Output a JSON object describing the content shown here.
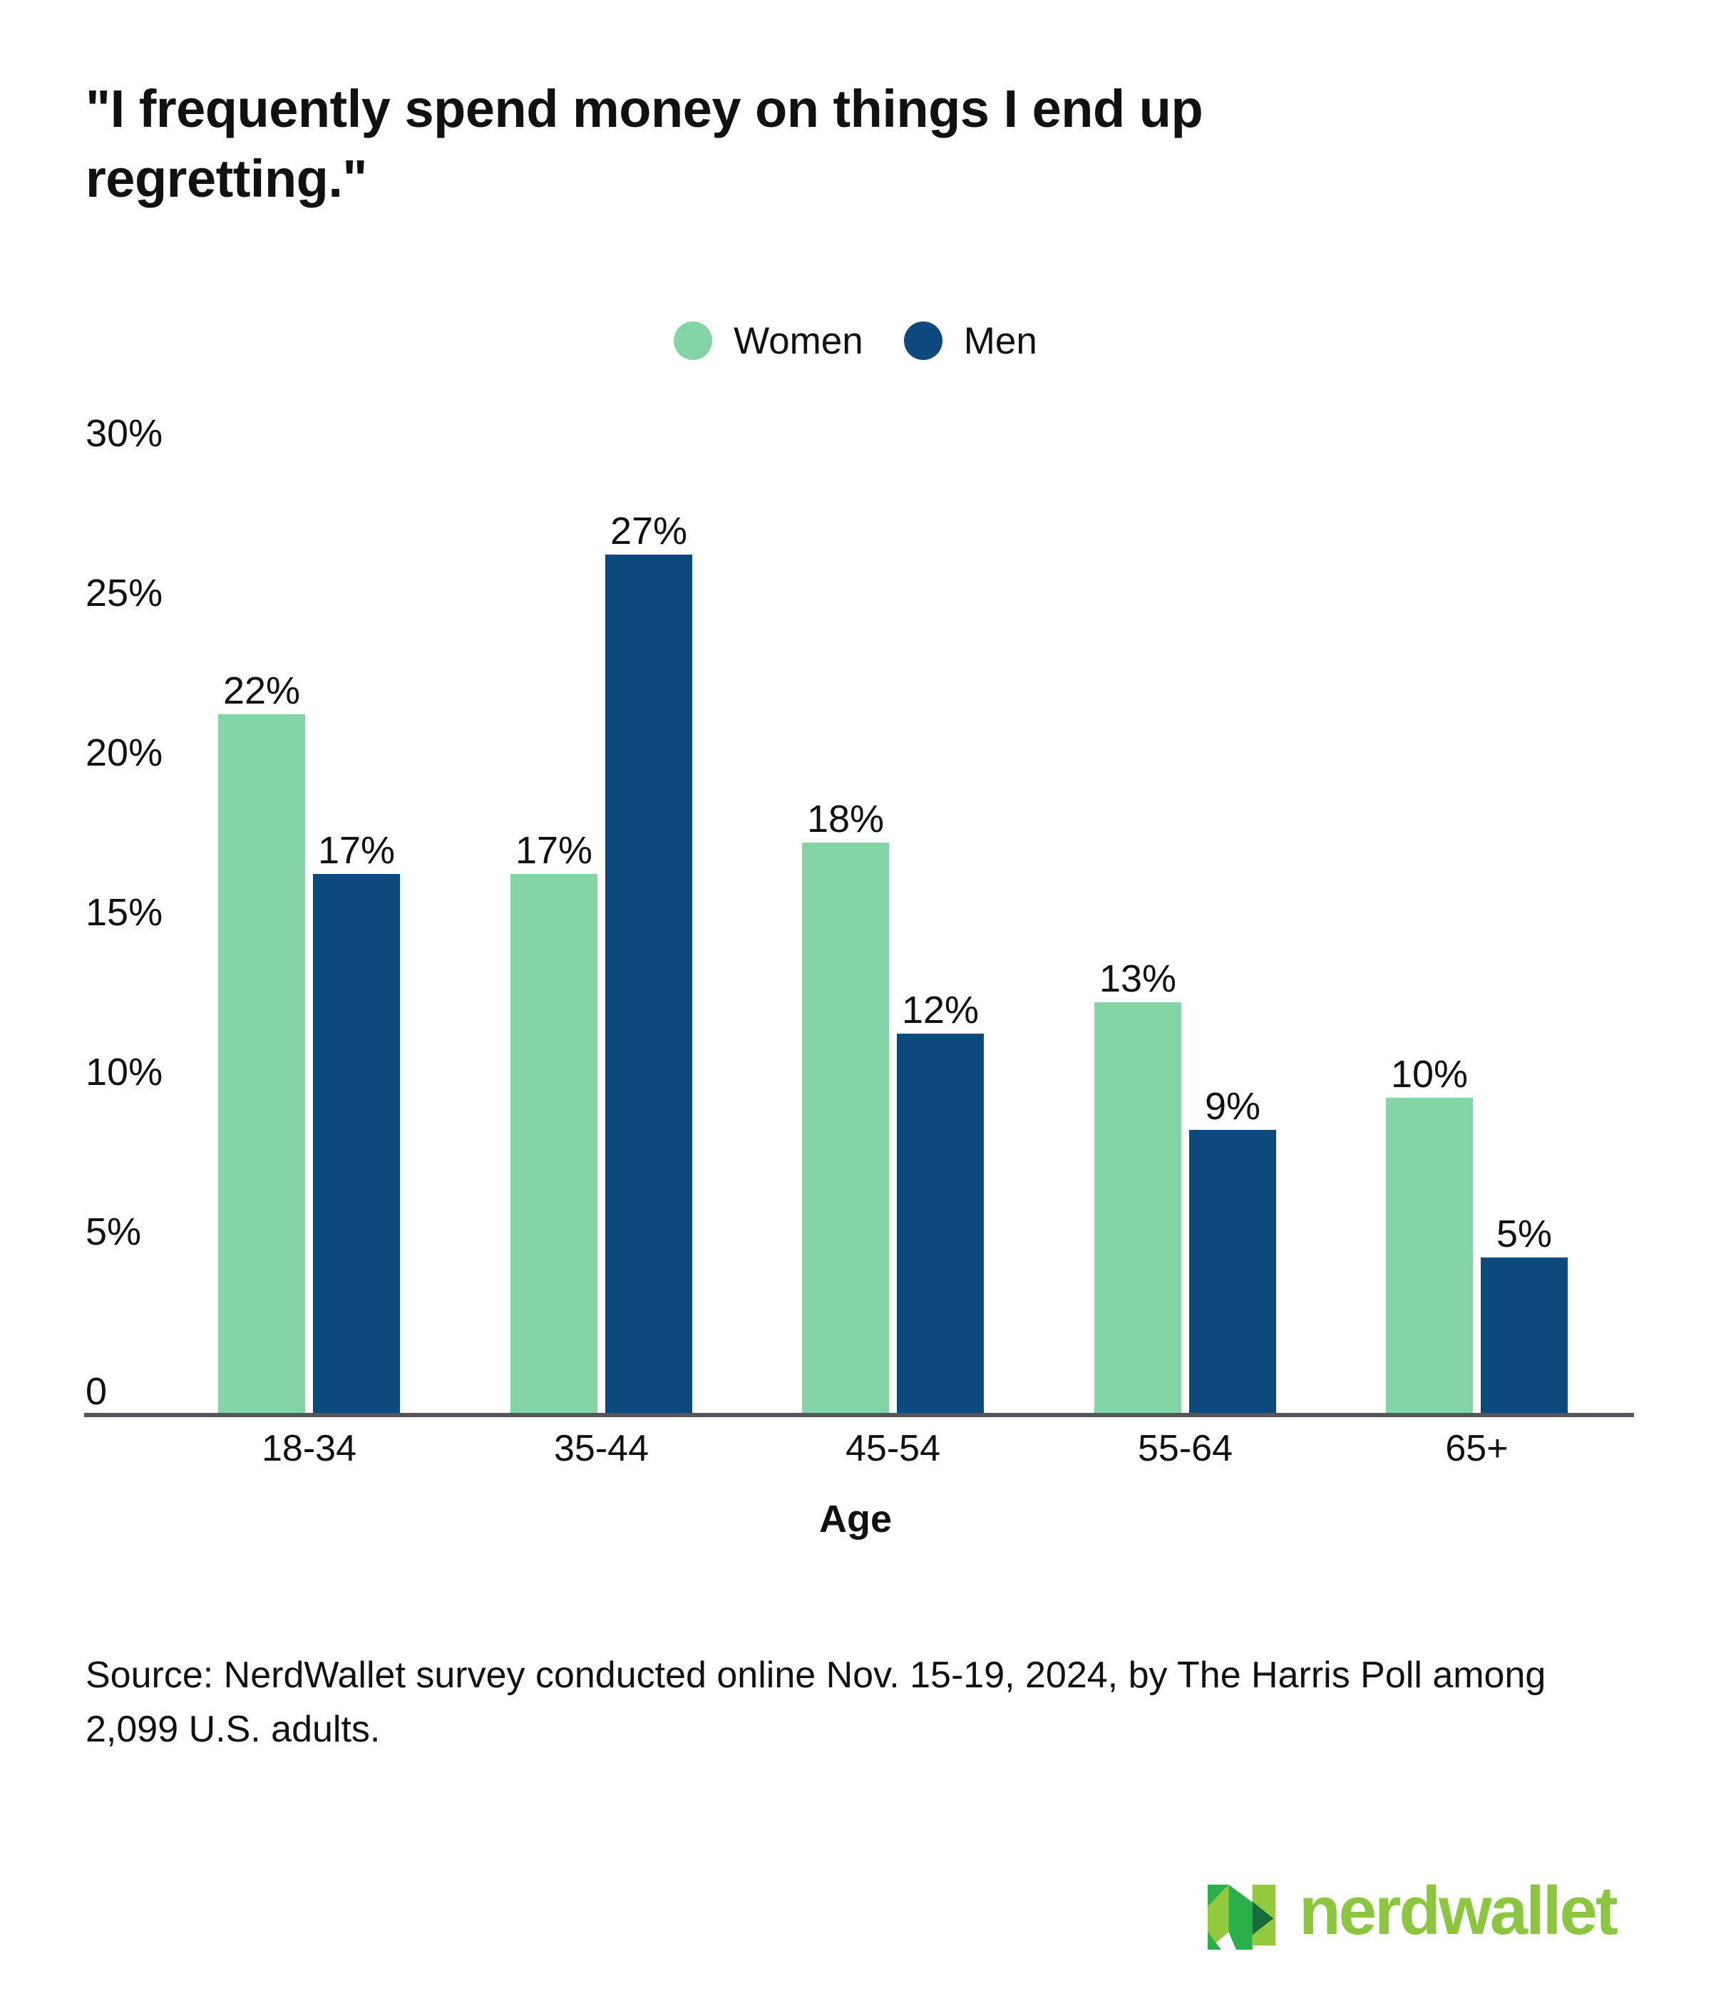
{
  "title": "\"I frequently spend money on things I end up regretting.\"",
  "legend": {
    "items": [
      {
        "label": "Women",
        "color": "#84D4A7"
      },
      {
        "label": "Men",
        "color": "#0C4A7D"
      }
    ]
  },
  "chart_data": {
    "type": "bar",
    "categories": [
      "18-34",
      "35-44",
      "45-54",
      "55-64",
      "65+"
    ],
    "series": [
      {
        "name": "Women",
        "color": "#84D4A7",
        "values": [
          22,
          17,
          18,
          13,
          10
        ]
      },
      {
        "name": "Men",
        "color": "#0C4A7D",
        "values": [
          17,
          27,
          12,
          9,
          5
        ]
      }
    ],
    "value_suffix": "%",
    "title": "\"I frequently spend money on things I end up regretting.\"",
    "xlabel": "Age",
    "ylabel": "",
    "ylim": [
      0,
      30
    ],
    "yticks": [
      {
        "label": "30%",
        "value": 30
      },
      {
        "label": "25%",
        "value": 25
      },
      {
        "label": "20%",
        "value": 20
      },
      {
        "label": "15%",
        "value": 15
      },
      {
        "label": "10%",
        "value": 10
      },
      {
        "label": "5%",
        "value": 5
      },
      {
        "label": "0",
        "value": 0
      }
    ],
    "grid": false,
    "legend_position": "top-center",
    "data_labels": true,
    "axis_line_color": "#54565A"
  },
  "xaxis": {
    "label": "Age"
  },
  "source": {
    "text": "Source: NerdWallet survey conducted online Nov. 15-19, 2024, by The Harris Poll among 2,099 U.S. adults."
  },
  "logo": {
    "wordmark": "nerdwallet",
    "wordmark_color": "#8CC63F",
    "mark_colors": {
      "kelly": "#2AB04A",
      "light": "#93C93F",
      "dark": "#176B3D"
    }
  }
}
